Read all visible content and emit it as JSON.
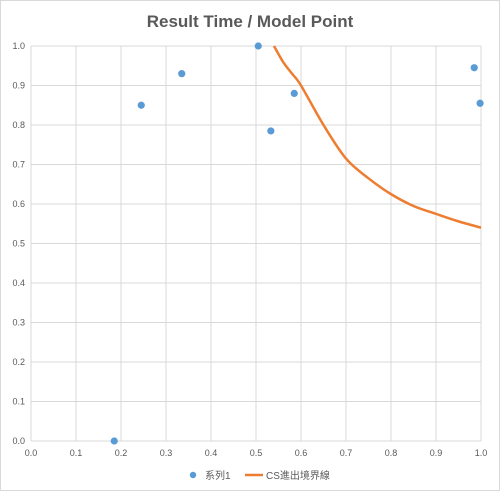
{
  "chart_data": {
    "type": "scatter",
    "title": "Result Time / Model Point",
    "xlabel": "",
    "ylabel": "",
    "xlim": [
      0,
      1
    ],
    "ylim": [
      0,
      1
    ],
    "x_ticks": [
      "0.0",
      "0.1",
      "0.2",
      "0.3",
      "0.4",
      "0.5",
      "0.6",
      "0.7",
      "0.8",
      "0.9",
      "1.0"
    ],
    "y_ticks": [
      "0.0",
      "0.1",
      "0.2",
      "0.3",
      "0.4",
      "0.5",
      "0.6",
      "0.7",
      "0.8",
      "0.9",
      "1.0"
    ],
    "grid": true,
    "legend_position": "bottom",
    "series": [
      {
        "name": "系列1",
        "type": "scatter",
        "color": "#5b9bd5",
        "points": [
          {
            "x": 0.185,
            "y": 0.0
          },
          {
            "x": 0.245,
            "y": 0.85
          },
          {
            "x": 0.335,
            "y": 0.93
          },
          {
            "x": 0.505,
            "y": 1.0
          },
          {
            "x": 0.533,
            "y": 0.785
          },
          {
            "x": 0.585,
            "y": 0.88
          },
          {
            "x": 0.985,
            "y": 0.945
          },
          {
            "x": 0.998,
            "y": 0.855
          }
        ]
      },
      {
        "name": "CS進出境界線",
        "type": "line",
        "color": "#ed7d31",
        "points": [
          {
            "x": 0.54,
            "y": 1.0
          },
          {
            "x": 0.56,
            "y": 0.96
          },
          {
            "x": 0.58,
            "y": 0.93
          },
          {
            "x": 0.6,
            "y": 0.9
          },
          {
            "x": 0.65,
            "y": 0.8
          },
          {
            "x": 0.7,
            "y": 0.715
          },
          {
            "x": 0.75,
            "y": 0.665
          },
          {
            "x": 0.8,
            "y": 0.625
          },
          {
            "x": 0.85,
            "y": 0.595
          },
          {
            "x": 0.9,
            "y": 0.575
          },
          {
            "x": 0.95,
            "y": 0.556
          },
          {
            "x": 1.0,
            "y": 0.54
          }
        ]
      }
    ]
  }
}
